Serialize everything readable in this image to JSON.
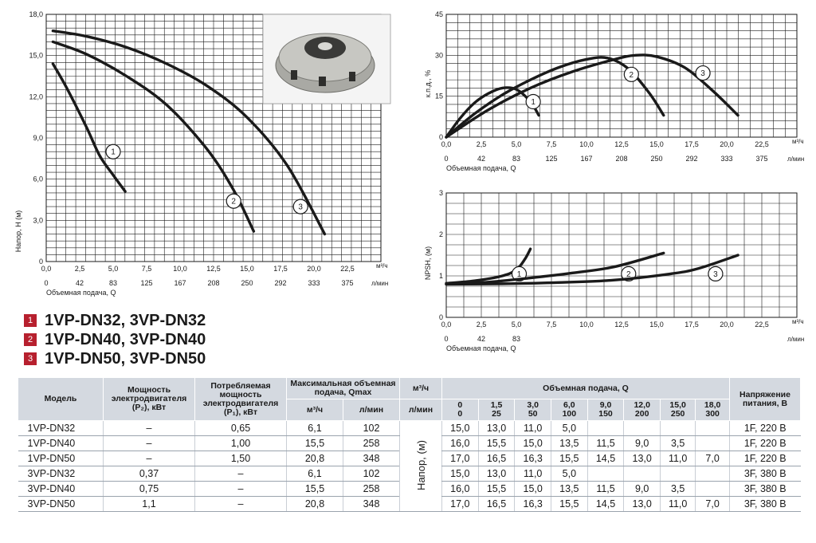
{
  "chart_data": [
    {
      "type": "line",
      "title": "",
      "ylabel": "Напор, H (м)",
      "xlabel": "Объемная подача, Q",
      "x_unit": "м³/ч",
      "x2_unit": "л/мин",
      "xlim": [
        0,
        25
      ],
      "ylim": [
        0,
        18
      ],
      "grid": true,
      "y_ticks": [
        "18,0",
        "15,0",
        "12,0",
        "9,0",
        "6,0",
        "3,0",
        "0"
      ],
      "x_ticks": [
        "0,0",
        "2,5",
        "5,0",
        "7,5",
        "10,0",
        "12,5",
        "15,0",
        "17,5",
        "20,0",
        "22,5"
      ],
      "x2_ticks": [
        "0",
        "42",
        "83",
        "125",
        "167",
        "208",
        "250",
        "292",
        "333",
        "375"
      ],
      "series": [
        {
          "name": "1",
          "x": [
            0.5,
            1.5,
            3.0,
            4.0,
            5.0,
            5.9
          ],
          "y": [
            14.4,
            12.7,
            9.8,
            7.7,
            6.3,
            5.1
          ]
        },
        {
          "name": "2",
          "x": [
            0.5,
            3.0,
            6.0,
            9.0,
            12.0,
            14.0,
            15.5
          ],
          "y": [
            16.0,
            15.1,
            13.5,
            11.4,
            8.2,
            5.2,
            2.2
          ]
        },
        {
          "name": "3",
          "x": [
            0.5,
            3.0,
            6.0,
            9.0,
            12.0,
            15.0,
            18.0,
            20.8
          ],
          "y": [
            16.8,
            16.4,
            15.6,
            14.4,
            12.8,
            10.5,
            7.0,
            2.0
          ]
        }
      ]
    },
    {
      "type": "line",
      "title": "",
      "ylabel": "к.п.д., %",
      "xlabel": "Объемная подача, Q",
      "x_unit": "м³/ч",
      "x2_unit": "л/мин",
      "xlim": [
        0,
        25
      ],
      "ylim": [
        0,
        45
      ],
      "grid": true,
      "y_ticks": [
        "45",
        "30",
        "15",
        "0"
      ],
      "x_ticks": [
        "0,0",
        "2,5",
        "5,0",
        "7,5",
        "10,0",
        "12,5",
        "15,0",
        "17,5",
        "20,0",
        "22,5"
      ],
      "x2_ticks": [
        "0",
        "42",
        "83",
        "125",
        "167",
        "208",
        "250",
        "292",
        "333",
        "375"
      ],
      "series": [
        {
          "name": "1",
          "x": [
            0,
            1,
            2,
            3,
            4,
            5,
            6,
            6.6
          ],
          "y": [
            0,
            7,
            12.5,
            16,
            18,
            17.5,
            13,
            8
          ]
        },
        {
          "name": "2",
          "x": [
            0,
            2,
            4,
            6,
            8,
            10,
            11.5,
            13,
            14.5,
            15.5
          ],
          "y": [
            0,
            8.5,
            15.5,
            21,
            25.5,
            28.5,
            29,
            25,
            16,
            8
          ]
        },
        {
          "name": "3",
          "x": [
            0,
            3,
            6,
            9,
            12,
            13.5,
            15,
            17,
            19,
            20.8
          ],
          "y": [
            0,
            10,
            18,
            24,
            28.5,
            30,
            29.5,
            25.5,
            17,
            8
          ]
        }
      ]
    },
    {
      "type": "line",
      "title": "",
      "ylabel": "NPSH, (м)",
      "xlabel": "Объемная подача, Q",
      "x_unit": "м³/ч",
      "x2_unit": "л/мин",
      "xlim": [
        0,
        25
      ],
      "ylim": [
        0,
        3
      ],
      "grid": true,
      "y_ticks": [
        "3",
        "2",
        "1",
        "0"
      ],
      "x_ticks": [
        "0,0",
        "2,5",
        "5,0",
        "7,5",
        "10,0",
        "12,5",
        "15,0",
        "17,5",
        "20,0",
        "22,5"
      ],
      "x2_ticks": [
        "0",
        "42",
        "83"
      ],
      "series": [
        {
          "name": "1",
          "x": [
            0,
            2,
            4,
            5,
            5.6,
            6.0
          ],
          "y": [
            0.82,
            0.88,
            1.0,
            1.15,
            1.4,
            1.65
          ]
        },
        {
          "name": "2",
          "x": [
            0,
            3,
            6,
            9,
            12,
            15.5
          ],
          "y": [
            0.8,
            0.85,
            0.95,
            1.07,
            1.22,
            1.55
          ]
        },
        {
          "name": "3",
          "x": [
            0,
            4,
            8,
            12,
            16,
            18,
            20.8
          ],
          "y": [
            0.8,
            0.81,
            0.84,
            0.9,
            1.05,
            1.18,
            1.5
          ]
        }
      ]
    }
  ],
  "legend": [
    {
      "num": "1",
      "text": "1VP-DN32, 3VP-DN32"
    },
    {
      "num": "2",
      "text": "1VP-DN40, 3VP-DN40"
    },
    {
      "num": "3",
      "text": "1VP-DN50, 3VP-DN50"
    }
  ],
  "table": {
    "h_model": "Модель",
    "h_power2": "Мощность электродвигателя (P₂), кВт",
    "h_power1": "Потребляемая мощность электродвигателя (P₁), кВт",
    "h_qmax": "Максимальная объемная подача, Qmax",
    "h_qmax_m3": "м³/ч",
    "h_qmax_lmin": "л/мин",
    "h_flow": "Объемная подача, Q",
    "h_unit_m3": "м³/ч",
    "h_unit_lmin": "л/мин",
    "flow_m3": [
      "0",
      "1,5",
      "3,0",
      "6,0",
      "9,0",
      "12,0",
      "15,0",
      "18,0"
    ],
    "flow_lmin": [
      "0",
      "25",
      "50",
      "100",
      "150",
      "200",
      "250",
      "300"
    ],
    "h_voltage": "Напряжение питания, В",
    "head_label": "Напор, (м)",
    "rows": [
      {
        "model": "1VP-DN32",
        "p2": "–",
        "p1": "0,65",
        "qm3": "6,1",
        "qlmin": "102",
        "h": [
          "15,0",
          "13,0",
          "11,0",
          "5,0",
          "",
          "",
          "",
          ""
        ],
        "v": "1F, 220 В"
      },
      {
        "model": "1VP-DN40",
        "p2": "–",
        "p1": "1,00",
        "qm3": "15,5",
        "qlmin": "258",
        "h": [
          "16,0",
          "15,5",
          "15,0",
          "13,5",
          "11,5",
          "9,0",
          "3,5",
          ""
        ],
        "v": "1F, 220 В"
      },
      {
        "model": "1VP-DN50",
        "p2": "–",
        "p1": "1,50",
        "qm3": "20,8",
        "qlmin": "348",
        "h": [
          "17,0",
          "16,5",
          "16,3",
          "15,5",
          "14,5",
          "13,0",
          "11,0",
          "7,0"
        ],
        "v": "1F, 220 В"
      },
      {
        "model": "3VP-DN32",
        "p2": "0,37",
        "p1": "–",
        "qm3": "6,1",
        "qlmin": "102",
        "h": [
          "15,0",
          "13,0",
          "11,0",
          "5,0",
          "",
          "",
          "",
          ""
        ],
        "v": "3F, 380 В"
      },
      {
        "model": "3VP-DN40",
        "p2": "0,75",
        "p1": "–",
        "qm3": "15,5",
        "qlmin": "258",
        "h": [
          "16,0",
          "15,5",
          "15,0",
          "13,5",
          "11,5",
          "9,0",
          "3,5",
          ""
        ],
        "v": "3F, 380 В"
      },
      {
        "model": "3VP-DN50",
        "p2": "1,1",
        "p1": "–",
        "qm3": "20,8",
        "qlmin": "348",
        "h": [
          "17,0",
          "16,5",
          "16,3",
          "15,5",
          "14,5",
          "13,0",
          "11,0",
          "7,0"
        ],
        "v": "3F, 380 В"
      }
    ]
  },
  "colors": {
    "curve": "#1a1a1a",
    "grid": "#1a1a1a",
    "accent": "#b7202e",
    "header_bg": "#d4d9e0"
  }
}
